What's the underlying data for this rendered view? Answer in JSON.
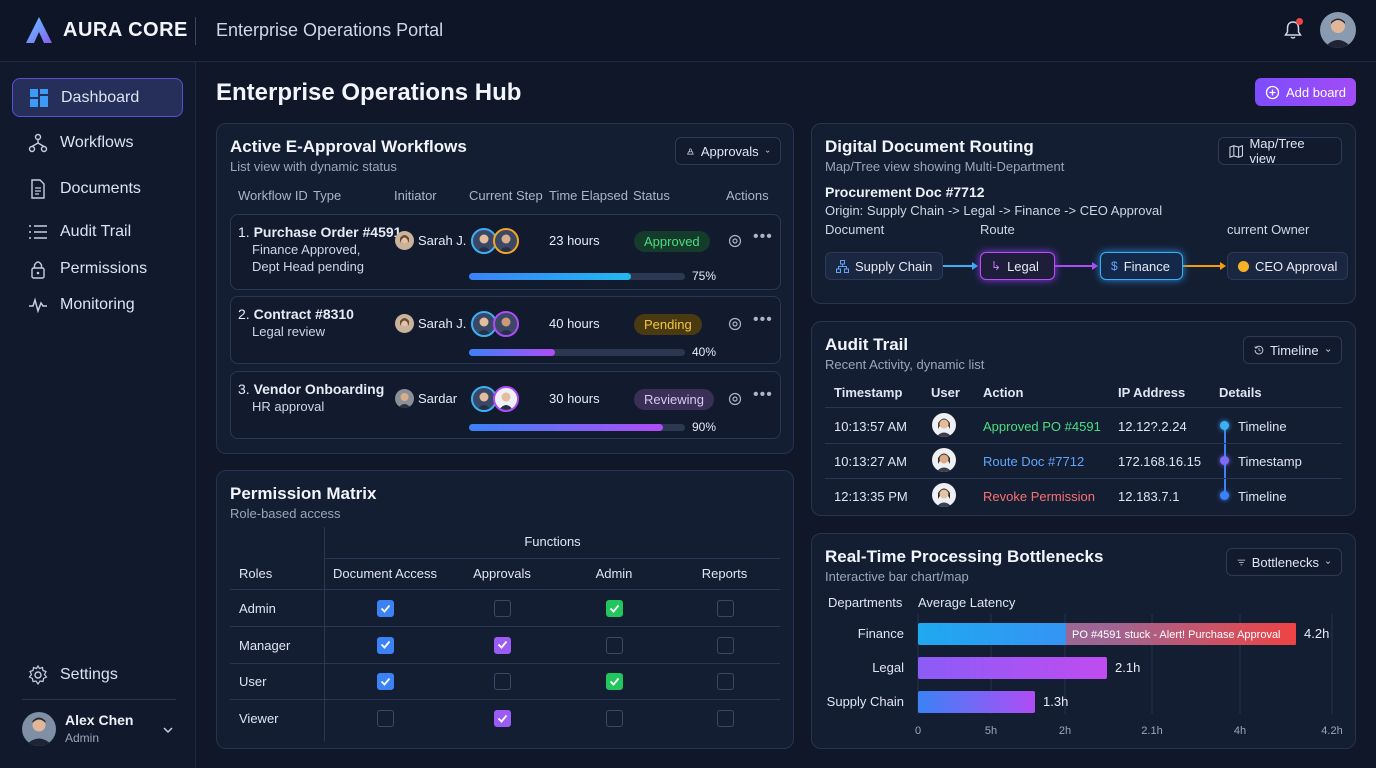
{
  "app": {
    "brand": "AURA CORE",
    "portal_title": "Enterprise Operations Portal"
  },
  "sidebar": {
    "items": [
      {
        "label": "Dashboard",
        "icon": "dashboard-icon",
        "active": true
      },
      {
        "label": "Workflows",
        "icon": "workflow-icon"
      },
      {
        "label": "Documents",
        "icon": "document-icon"
      },
      {
        "label": "Audit Trail",
        "icon": "audit-list-icon"
      },
      {
        "label": "Permissions",
        "icon": "lock-icon"
      },
      {
        "label": "Monitoring",
        "icon": "pulse-icon"
      }
    ],
    "settings_label": "Settings",
    "user": {
      "name": "Alex Chen",
      "role": "Admin"
    }
  },
  "page": {
    "title": "Enterprise Operations Hub",
    "add_board_label": "Add board"
  },
  "workflows": {
    "title": "Active E-Approval Workflows",
    "subtitle": "List view with dynamic status",
    "filter_label": "Approvals",
    "columns": {
      "id": "Workflow ID",
      "type": "Type",
      "initiator": "Initiator",
      "step": "Current Step",
      "time": "Time Elapsed",
      "status": "Status",
      "actions": "Actions"
    },
    "rows": [
      {
        "num": "1.",
        "name": "Purchase Order #4591",
        "desc1": "Finance Approved,",
        "desc2": "Dept Head pending",
        "initiator": "Sarah J.",
        "time": "23 hours",
        "status": "Approved",
        "progress": 75,
        "progress_label": "75%"
      },
      {
        "num": "2.",
        "name": "Contract #8310",
        "desc1": "Legal review",
        "desc2": "",
        "initiator": "Sarah J.",
        "time": "40 hours",
        "status": "Pending",
        "progress": 40,
        "progress_label": "40%"
      },
      {
        "num": "3.",
        "name": "Vendor Onboarding",
        "desc1": "HR approval",
        "desc2": "",
        "initiator": "Sardar",
        "time": "30 hours",
        "status": "Reviewing",
        "progress": 90,
        "progress_label": "90%"
      }
    ]
  },
  "permissions": {
    "title": "Permission Matrix",
    "subtitle": "Role-based access",
    "group_header": "Functions",
    "roles_header": "Roles",
    "functions": [
      "Document Access",
      "Approvals",
      "Admin",
      "Reports"
    ],
    "rows": [
      {
        "role": "Admin",
        "checks": [
          "blue",
          "none",
          "green",
          "none"
        ]
      },
      {
        "role": "Manager",
        "checks": [
          "blue",
          "purple",
          "none",
          "none"
        ]
      },
      {
        "role": "User",
        "checks": [
          "blue",
          "none",
          "green",
          "none"
        ]
      },
      {
        "role": "Viewer",
        "checks": [
          "none",
          "purple",
          "none",
          "none"
        ]
      }
    ]
  },
  "routing": {
    "title": "Digital Document Routing",
    "subtitle": "Map/Tree view showing Multi-Department",
    "view_label": "Map/Tree view",
    "doc_title": "Procurement Doc #7712",
    "origin": "Origin: Supply Chain -> Legal -> Finance -> CEO Approval",
    "col_document": "Document",
    "col_route": "Route",
    "col_owner": "current Owner",
    "nodes": [
      "Supply Chain",
      "Legal",
      "Finance",
      "CEO Approval"
    ]
  },
  "audit": {
    "title": "Audit Trail",
    "subtitle": "Recent Activity, dynamic list",
    "view_label": "Timeline",
    "columns": [
      "Timestamp",
      "User",
      "Action",
      "IP Address",
      "Details"
    ],
    "rows": [
      {
        "time": "10:13:57 AM",
        "action": "Approved PO #4591",
        "action_color": "#4ade80",
        "ip": "12.12?.2.24",
        "details": "Timeline"
      },
      {
        "time": "10:13:27 AM",
        "action": "Route Doc #7712",
        "action_color": "#60a5fa",
        "ip": "172.168.16.15",
        "details": "Timestamp"
      },
      {
        "time": "12:13:35 PM",
        "action": "Revoke Permission",
        "action_color": "#f87171",
        "ip": "12.183.7.1",
        "details": "Timeline"
      }
    ]
  },
  "bottlenecks": {
    "title": "Real-Time Processing Bottlenecks",
    "subtitle": "Interactive bar chart/map",
    "view_label": "Bottlenecks",
    "col_departments": "Departments",
    "col_latency": "Average Latency",
    "alert_text": "PO #4591 stuck - Alert! Purchase Approval"
  },
  "chart_data": {
    "type": "bar",
    "orientation": "horizontal",
    "categories": [
      "Finance",
      "Legal",
      "Supply Chain"
    ],
    "values": [
      4.2,
      2.1,
      1.3
    ],
    "value_labels": [
      "4.2h",
      "2.1h",
      "1.3h"
    ],
    "x_ticks": [
      "0",
      "5h",
      "2h",
      "2.1h",
      "4h",
      "4.2h"
    ],
    "colors": [
      "#22b8f0",
      "#c04cf0",
      "#a24cf6"
    ]
  }
}
